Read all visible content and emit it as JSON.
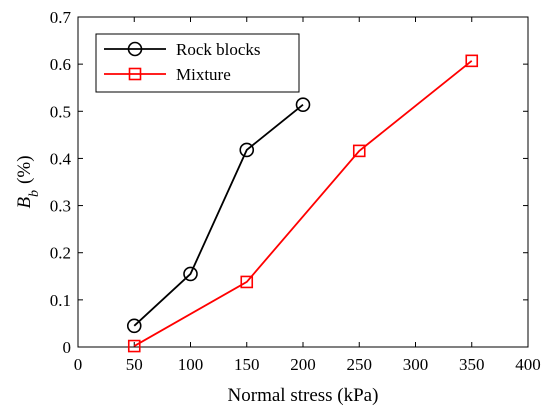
{
  "chart_data": {
    "type": "line",
    "xlabel": "Normal stress (kPa)",
    "ylabel": {
      "main": "B",
      "sub": "b",
      "unit": "(%)"
    },
    "xlim": [
      0,
      400
    ],
    "ylim": [
      0,
      0.7
    ],
    "x_ticks": [
      0,
      50,
      100,
      150,
      200,
      250,
      300,
      350,
      400
    ],
    "y_ticks": [
      0,
      0.1,
      0.2,
      0.3,
      0.4,
      0.5,
      0.6,
      0.7
    ],
    "x_tick_labels": [
      "0",
      "50",
      "100",
      "150",
      "200",
      "250",
      "300",
      "350",
      "400"
    ],
    "y_tick_labels": [
      "0",
      "0.1",
      "0.2",
      "0.3",
      "0.4",
      "0.5",
      "0.6",
      "0.7"
    ],
    "grid": false,
    "legend_position": "top-left",
    "series": [
      {
        "name": "Rock blocks",
        "color": "#000000",
        "marker": "circle",
        "x": [
          50,
          100,
          150,
          200
        ],
        "y": [
          0.045,
          0.155,
          0.418,
          0.514
        ]
      },
      {
        "name": "Mixture",
        "color": "#ff0000",
        "marker": "square",
        "x": [
          50,
          150,
          250,
          350
        ],
        "y": [
          0.002,
          0.138,
          0.416,
          0.607
        ]
      }
    ]
  }
}
